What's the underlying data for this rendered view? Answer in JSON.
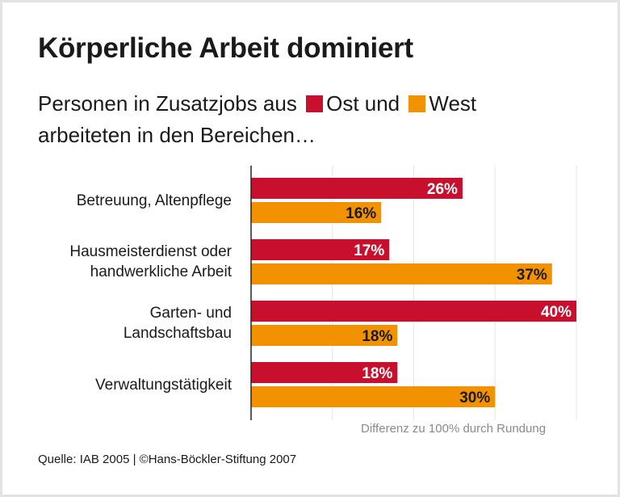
{
  "title": "Körperliche Arbeit dominiert",
  "subtitle": {
    "line1_prefix": "Personen in Zusatzjobs aus",
    "ost_label": "Ost und",
    "west_label": "West",
    "line2": "arbeiteten in den Bereichen…"
  },
  "note": "Differenz zu 100% durch Rundung",
  "source": "Quelle: IAB 2005 | ©Hans-Böckler-Stiftung 2007",
  "colors": {
    "ost": "#c8102e",
    "west": "#f39200",
    "grid": "#e6e6e6",
    "axis": "#222222"
  },
  "chart_data": {
    "type": "bar",
    "orientation": "horizontal",
    "categories": [
      "Betreuung, Altenpflege",
      "Hausmeisterdienst oder handwerkliche Arbeit",
      "Garten- und Landschaftsbau",
      "Verwaltungstätigkeit"
    ],
    "category_lines": [
      [
        "Betreuung, Altenpflege"
      ],
      [
        "Hausmeisterdienst oder",
        "handwerkliche Arbeit"
      ],
      [
        "Garten- und",
        "Landschaftsbau"
      ],
      [
        "Verwaltungstätigkeit"
      ]
    ],
    "series": [
      {
        "name": "Ost",
        "values": [
          26,
          17,
          40,
          18
        ],
        "labels": [
          "26%",
          "17%",
          "40%",
          "18%"
        ]
      },
      {
        "name": "West",
        "values": [
          16,
          37,
          18,
          30
        ],
        "labels": [
          "16%",
          "37%",
          "18%",
          "30%"
        ]
      }
    ],
    "unit": "%",
    "xlim": [
      0,
      40
    ],
    "grid": true,
    "gridlines_at": [
      10,
      20,
      30,
      40
    ]
  }
}
